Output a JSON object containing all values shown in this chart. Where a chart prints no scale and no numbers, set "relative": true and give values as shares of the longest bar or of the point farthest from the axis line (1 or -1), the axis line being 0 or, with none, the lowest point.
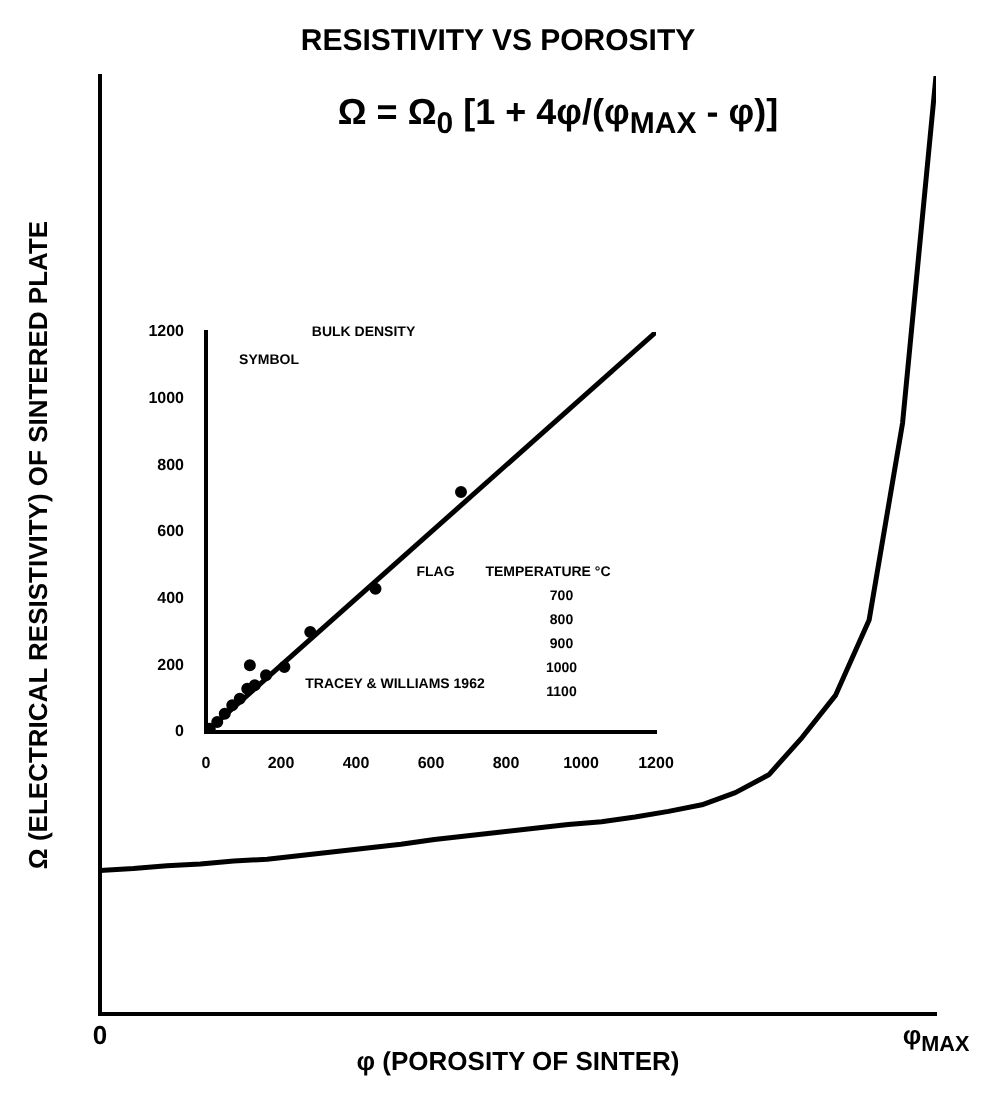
{
  "chart_data": [
    {
      "type": "line",
      "title": "RESISTIVITY VS POROSITY",
      "xlabel": "φ (POROSITY OF SINTER)",
      "ylabel": "Ω (ELECTRICAL RESISTIVITY) OF SINTERED PLATE",
      "annotations": [
        "Ω = Ω$_{0}$ [1 + 4φ/(φ$_{MAX}$ - φ)]"
      ],
      "relative": true,
      "categories": [
        "0",
        null,
        null,
        null,
        null,
        null,
        null,
        null,
        null,
        null,
        null,
        null,
        null,
        null,
        null,
        null,
        null,
        null,
        null,
        null,
        null,
        null,
        null,
        null,
        null,
        "φ$_{MAX}$"
      ],
      "series": [
        {
          "color": "#000000",
          "values": [
            0.153,
            0.155,
            0.158,
            0.16,
            0.163,
            0.165,
            0.169,
            0.173,
            0.177,
            0.181,
            0.186,
            0.19,
            0.194,
            0.198,
            0.202,
            0.205,
            0.21,
            0.216,
            0.223,
            0.236,
            0.255,
            0.295,
            0.34,
            0.42,
            0.63,
            1
          ]
        }
      ]
    },
    {
      "type": "scatter",
      "xlim": [
        0,
        1200
      ],
      "ylim": [
        0,
        1200
      ],
      "xticks": [
        0,
        200,
        400,
        600,
        800,
        1000,
        1200
      ],
      "yticks": [
        0,
        200,
        400,
        600,
        800,
        1000,
        1200
      ],
      "annotations": [
        "BULK DENSITY",
        "SYMBOL",
        "FLAG",
        "TEMPERATURE °C",
        "700",
        "800",
        "900",
        "1000",
        "1100",
        "TRACEY & WILLIAMS 1962"
      ],
      "series": [
        {
          "color": "#000000",
          "x": [
            10,
            30,
            50,
            70,
            90,
            110,
            117,
            130,
            160,
            209,
            278,
            452,
            680
          ],
          "values": [
            10,
            30,
            55,
            80,
            100,
            130,
            200,
            140,
            170,
            195,
            300,
            430,
            720
          ]
        },
        {
          "type": "line",
          "color": "#000000",
          "x": [
            0,
            1200
          ],
          "values": [
            0,
            1200
          ]
        }
      ]
    }
  ]
}
